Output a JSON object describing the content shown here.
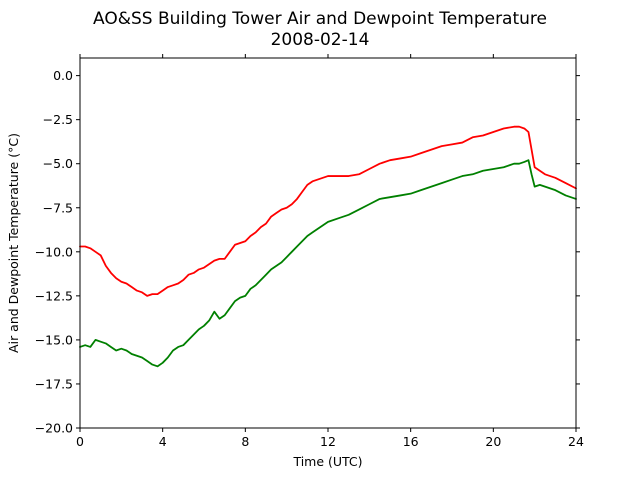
{
  "chart_data": {
    "type": "line",
    "title": "AO&SS Building Tower Air and Dewpoint Temperature",
    "subtitle": "2008-02-14",
    "xlabel": "Time (UTC)",
    "ylabel": "Air and Dewpoint Temperature (°C)",
    "xlim": [
      0,
      24
    ],
    "ylim": [
      -20.0,
      1.0
    ],
    "xticks": [
      0,
      4,
      8,
      12,
      16,
      20,
      24
    ],
    "xtick_labels": [
      "0",
      "4",
      "8",
      "12",
      "16",
      "20",
      "24"
    ],
    "yticks": [
      0.0,
      -2.5,
      -5.0,
      -7.5,
      -10.0,
      -12.5,
      -15.0,
      -17.5,
      -20.0
    ],
    "ytick_labels": [
      "0.0",
      "−2.5",
      "−5.0",
      "−7.5",
      "−10.0",
      "−12.5",
      "−15.0",
      "−17.5",
      "−20.0"
    ],
    "grid": false,
    "series": [
      {
        "color": "#ff0000",
        "x": [
          0,
          0.25,
          0.5,
          0.75,
          1.0,
          1.25,
          1.5,
          1.75,
          2.0,
          2.25,
          2.5,
          2.75,
          3.0,
          3.25,
          3.5,
          3.75,
          4.0,
          4.25,
          4.5,
          4.75,
          5.0,
          5.25,
          5.5,
          5.75,
          6.0,
          6.25,
          6.5,
          6.75,
          7.0,
          7.25,
          7.5,
          7.75,
          8.0,
          8.25,
          8.5,
          8.75,
          9.0,
          9.25,
          9.5,
          9.75,
          10.0,
          10.25,
          10.5,
          10.75,
          11.0,
          11.25,
          11.5,
          12.0,
          12.5,
          13.0,
          13.5,
          14.0,
          14.5,
          15.0,
          15.5,
          16.0,
          16.5,
          17.0,
          17.5,
          18.0,
          18.5,
          19.0,
          19.5,
          20.0,
          20.5,
          21.0,
          21.25,
          21.5,
          21.7,
          21.85,
          22.0,
          22.25,
          22.5,
          23.0,
          23.5,
          24.0
        ],
        "y": [
          -9.7,
          -9.7,
          -9.8,
          -10.0,
          -10.2,
          -10.8,
          -11.2,
          -11.5,
          -11.7,
          -11.8,
          -12.0,
          -12.2,
          -12.3,
          -12.5,
          -12.4,
          -12.4,
          -12.2,
          -12.0,
          -11.9,
          -11.8,
          -11.6,
          -11.3,
          -11.2,
          -11.0,
          -10.9,
          -10.7,
          -10.5,
          -10.4,
          -10.4,
          -10.0,
          -9.6,
          -9.5,
          -9.4,
          -9.1,
          -8.9,
          -8.6,
          -8.4,
          -8.0,
          -7.8,
          -7.6,
          -7.5,
          -7.3,
          -7.0,
          -6.6,
          -6.2,
          -6.0,
          -5.9,
          -5.7,
          -5.7,
          -5.7,
          -5.6,
          -5.3,
          -5.0,
          -4.8,
          -4.7,
          -4.6,
          -4.4,
          -4.2,
          -4.0,
          -3.9,
          -3.8,
          -3.5,
          -3.4,
          -3.2,
          -3.0,
          -2.9,
          -2.9,
          -3.0,
          -3.2,
          -4.2,
          -5.2,
          -5.4,
          -5.6,
          -5.8,
          -6.1,
          -6.4
        ]
      },
      {
        "color": "#008000",
        "x": [
          0,
          0.25,
          0.5,
          0.75,
          1.0,
          1.25,
          1.5,
          1.75,
          2.0,
          2.25,
          2.5,
          2.75,
          3.0,
          3.25,
          3.5,
          3.75,
          4.0,
          4.25,
          4.5,
          4.75,
          5.0,
          5.25,
          5.5,
          5.75,
          6.0,
          6.25,
          6.5,
          6.75,
          7.0,
          7.25,
          7.5,
          7.75,
          8.0,
          8.25,
          8.5,
          8.75,
          9.0,
          9.25,
          9.5,
          9.75,
          10.0,
          10.25,
          10.5,
          10.75,
          11.0,
          11.25,
          11.5,
          12.0,
          12.5,
          13.0,
          13.5,
          14.0,
          14.5,
          15.0,
          15.5,
          16.0,
          16.5,
          17.0,
          17.5,
          18.0,
          18.5,
          19.0,
          19.5,
          20.0,
          20.5,
          21.0,
          21.25,
          21.5,
          21.7,
          21.85,
          22.0,
          22.25,
          22.5,
          23.0,
          23.5,
          24.0
        ],
        "y": [
          -15.4,
          -15.3,
          -15.4,
          -15.0,
          -15.1,
          -15.2,
          -15.4,
          -15.6,
          -15.5,
          -15.6,
          -15.8,
          -15.9,
          -16.0,
          -16.2,
          -16.4,
          -16.5,
          -16.3,
          -16.0,
          -15.6,
          -15.4,
          -15.3,
          -15.0,
          -14.7,
          -14.4,
          -14.2,
          -13.9,
          -13.4,
          -13.8,
          -13.6,
          -13.2,
          -12.8,
          -12.6,
          -12.5,
          -12.1,
          -11.9,
          -11.6,
          -11.3,
          -11.0,
          -10.8,
          -10.6,
          -10.3,
          -10.0,
          -9.7,
          -9.4,
          -9.1,
          -8.9,
          -8.7,
          -8.3,
          -8.1,
          -7.9,
          -7.6,
          -7.3,
          -7.0,
          -6.9,
          -6.8,
          -6.7,
          -6.5,
          -6.3,
          -6.1,
          -5.9,
          -5.7,
          -5.6,
          -5.4,
          -5.3,
          -5.2,
          -5.0,
          -5.0,
          -4.9,
          -4.8,
          -5.6,
          -6.3,
          -6.2,
          -6.3,
          -6.5,
          -6.8,
          -7.0
        ]
      }
    ]
  }
}
